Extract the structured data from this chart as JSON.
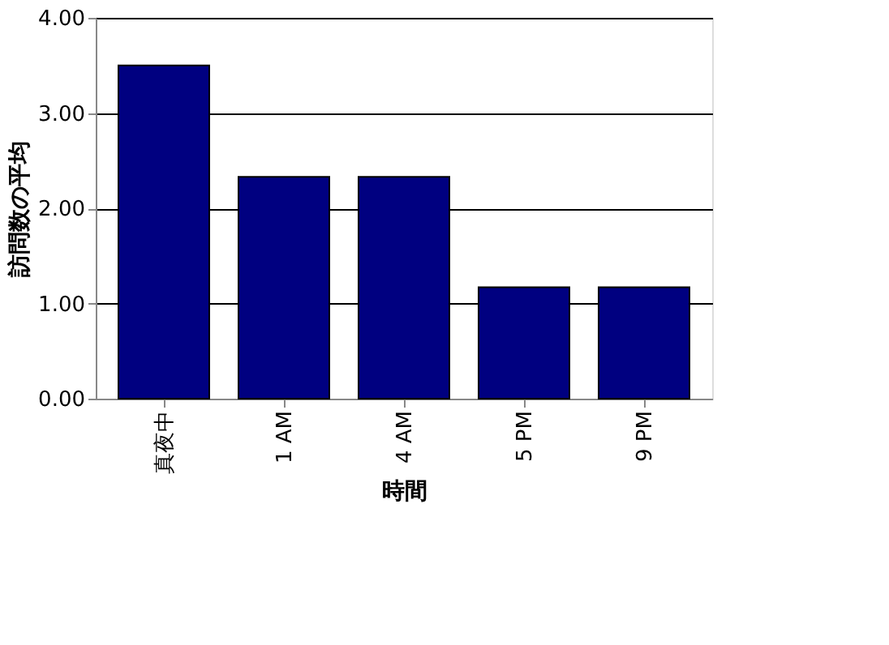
{
  "chart_data": {
    "type": "bar",
    "xlabel": "時間",
    "ylabel": "訪問数の平均",
    "categories": [
      "真夜中",
      "1 AM",
      "4 AM",
      "5 PM",
      "9 PM"
    ],
    "values": [
      3.5,
      2.33,
      2.33,
      1.17,
      1.17
    ],
    "color": "#000080",
    "ylim": [
      0,
      4
    ],
    "yticks": [
      {
        "value": 0,
        "label": "0.00"
      },
      {
        "value": 1,
        "label": "1.00"
      },
      {
        "value": 2,
        "label": "2.00"
      },
      {
        "value": 3,
        "label": "3.00"
      },
      {
        "value": 4,
        "label": "4.00"
      }
    ],
    "grid": "y"
  }
}
